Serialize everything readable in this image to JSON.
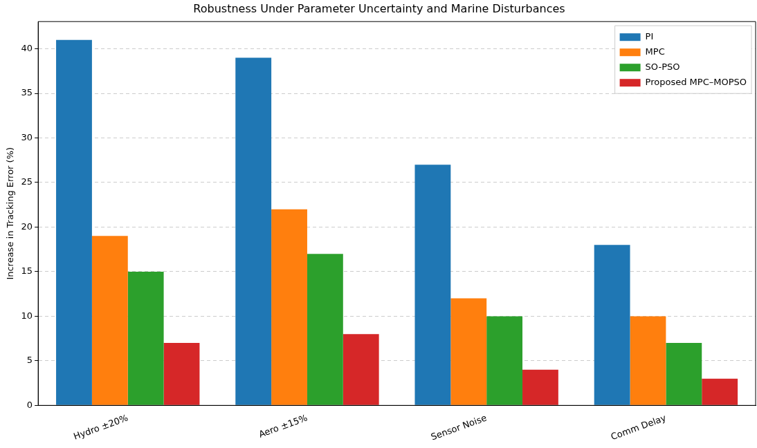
{
  "chart_data": {
    "type": "bar",
    "title": "Robustness Under Parameter Uncertainty and Marine Disturbances",
    "ylabel": "Increase in Tracking Error (%)",
    "categories": [
      "Hydro ±20%",
      "Aero ±15%",
      "Sensor Noise",
      "Comm Delay"
    ],
    "series": [
      {
        "name": "PI",
        "color": "#1f77b4",
        "values": [
          41,
          39,
          27,
          18
        ]
      },
      {
        "name": "MPC",
        "color": "#ff7f0e",
        "values": [
          19,
          22,
          12,
          10
        ]
      },
      {
        "name": "SO-PSO",
        "color": "#2ca02c",
        "values": [
          15,
          17,
          10,
          7
        ]
      },
      {
        "name": "Proposed MPC–MOPSO",
        "color": "#d62728",
        "values": [
          7,
          8,
          4,
          3
        ]
      }
    ],
    "ylim": [
      0,
      43.05
    ],
    "yticks": [
      0,
      5,
      10,
      15,
      20,
      25,
      30,
      35,
      40
    ],
    "grid": "y",
    "legend": "top right"
  }
}
